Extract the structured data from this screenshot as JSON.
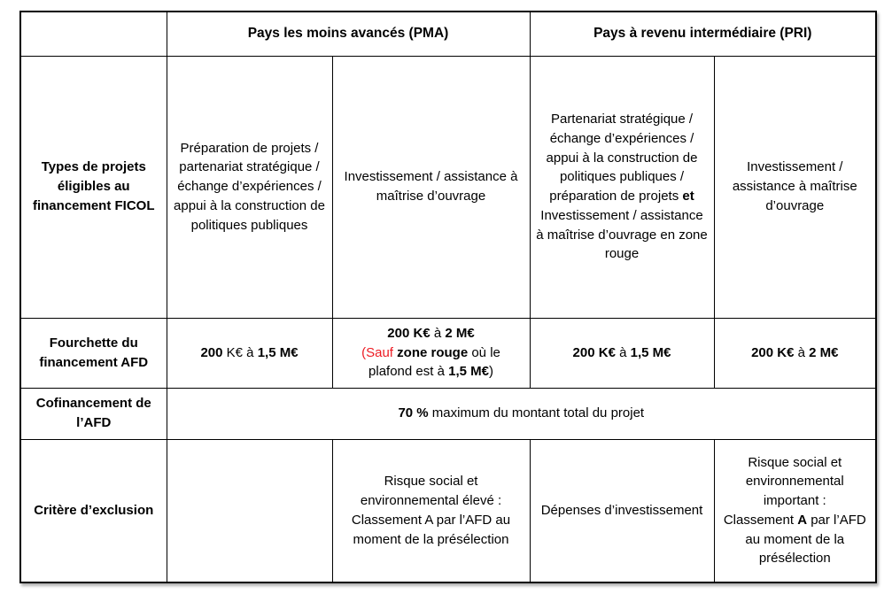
{
  "colors": {
    "red": "#ed1c24",
    "text": "#000000",
    "border": "#000000",
    "background": "#ffffff"
  },
  "table": {
    "header": {
      "corner": "",
      "pma": "Pays les moins avancés (PMA)",
      "pri": "Pays à revenu intermédiaire (PRI)"
    },
    "rows": [
      {
        "label": "Types de projets éligibles au financement FICOL",
        "cells": [
          [
            {
              "t": "Préparation de projets / partenariat stratégique / échange d’expériences / appui à la construction de politiques publiques"
            }
          ],
          [
            {
              "t": "Investissement / assistance à maîtrise d’ouvrage"
            }
          ],
          [
            {
              "t": "Partenariat stratégique / échange d’expériences / appui à la construction de politiques publiques / préparation de projets "
            },
            {
              "t": "et",
              "b": true
            },
            {
              "t": " Investissement / assistance à maîtrise d’ouvrage en zone rouge"
            }
          ],
          [
            {
              "t": "Investissement / assistance à maîtrise d’ouvrage"
            }
          ]
        ]
      },
      {
        "label": "Fourchette du financement AFD",
        "cells": [
          [
            {
              "t": "200",
              "b": true
            },
            {
              "t": " K€ à "
            },
            {
              "t": "1,5 M€",
              "b": true
            }
          ],
          [
            {
              "t": "200 K€",
              "b": true
            },
            {
              "t": " à "
            },
            {
              "t": "2 M€",
              "b": true
            },
            {
              "br": true
            },
            {
              "t": "(Sauf ",
              "c": "red"
            },
            {
              "t": "zone rouge",
              "b": true
            },
            {
              "t": " où le plafond est à "
            },
            {
              "t": "1,5 M€",
              "b": true
            },
            {
              "t": ")"
            }
          ],
          [
            {
              "t": "200 K€",
              "b": true
            },
            {
              "t": " à "
            },
            {
              "t": "1,5 M€",
              "b": true
            }
          ],
          [
            {
              "t": "200 K€",
              "b": true
            },
            {
              "t": " à "
            },
            {
              "t": "2 M€",
              "b": true
            }
          ]
        ]
      },
      {
        "label": "Cofinancement de l’AFD",
        "cells": [
          [
            {
              "t": "70 %",
              "b": true
            },
            {
              "t": " maximum du montant total du projet"
            }
          ]
        ]
      },
      {
        "label": "Critère d’exclusion",
        "cells": [
          [],
          [
            {
              "t": "Risque social et environnemental élevé :"
            },
            {
              "br": true
            },
            {
              "t": "Classement A par l’AFD au moment de la présélection"
            }
          ],
          [
            {
              "t": "Dépenses d’investissement"
            }
          ],
          [
            {
              "t": "Risque social et environnemental important :"
            },
            {
              "br": true
            },
            {
              "t": "Classement "
            },
            {
              "t": "A",
              "b": true
            },
            {
              "t": " par l’AFD au moment de la présélection"
            }
          ]
        ]
      }
    ]
  }
}
